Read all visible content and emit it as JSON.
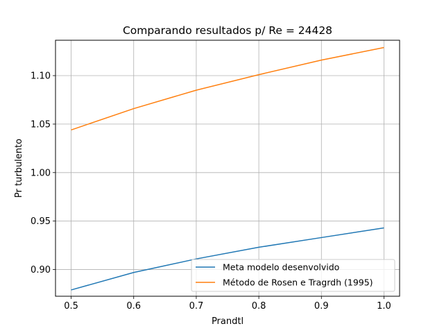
{
  "chart_data": {
    "type": "line",
    "title": "Comparando resultados p/ Re = 24428",
    "xlabel": "Prandtl",
    "ylabel": "Pr turbulento",
    "x": [
      0.5,
      0.6,
      0.7,
      0.8,
      0.9,
      1.0
    ],
    "xlim": [
      0.475,
      1.025
    ],
    "ylim": [
      0.8725,
      1.1365
    ],
    "xticks": [
      "0.5",
      "0.6",
      "0.7",
      "0.8",
      "0.9",
      "1.0"
    ],
    "yticks": [
      "0.90",
      "0.95",
      "1.00",
      "1.05",
      "1.10"
    ],
    "grid": true,
    "legend_position": "lower-right",
    "series": [
      {
        "name": "Meta modelo desenvolvido",
        "color": "#1f77b4",
        "values": [
          0.879,
          0.897,
          0.911,
          0.923,
          0.933,
          0.943
        ]
      },
      {
        "name": "Método de Rosen e Tragrdh (1995)",
        "color": "#ff7f0e",
        "values": [
          1.044,
          1.066,
          1.085,
          1.101,
          1.116,
          1.129
        ]
      }
    ]
  }
}
